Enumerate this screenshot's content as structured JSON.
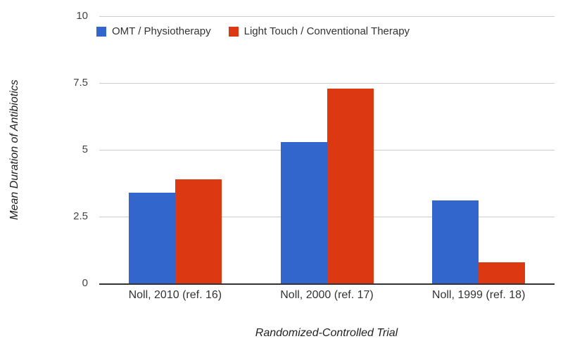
{
  "chart_data": {
    "type": "bar",
    "title": "",
    "xlabel": "Randomized-Controlled Trial",
    "ylabel": "Mean Duration of Antibiotics",
    "categories": [
      "Noll, 2010 (ref. 16)",
      "Noll, 2000 (ref. 17)",
      "Noll, 1999 (ref. 18)"
    ],
    "series": [
      {
        "name": "OMT / Physiotherapy",
        "color": "#3366CC",
        "values": [
          3.4,
          5.3,
          3.1
        ]
      },
      {
        "name": "Light Touch / Conventional Therapy",
        "color": "#DC3912",
        "values": [
          3.9,
          7.3,
          0.8
        ]
      }
    ],
    "ylim": [
      0,
      10
    ],
    "yticks": [
      0,
      2.5,
      5,
      7.5,
      10
    ],
    "grid": true,
    "legend_position": "top-left-inside"
  },
  "colors": {
    "gridline": "#cccccc",
    "baseline": "#333333",
    "tick_label": "#444444",
    "category_label": "#333333",
    "axis_title": "#222222",
    "background": "#ffffff"
  }
}
